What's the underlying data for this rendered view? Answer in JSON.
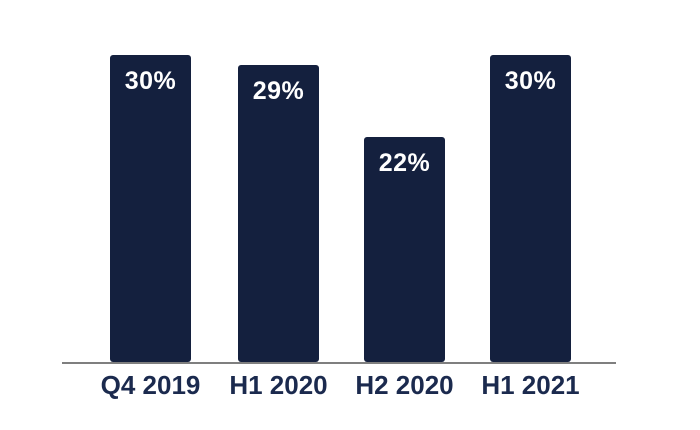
{
  "chart_data": {
    "type": "bar",
    "categories": [
      "Q4 2019",
      "H1 2020",
      "H2 2020",
      "H1 2021"
    ],
    "values": [
      30,
      29,
      22,
      30
    ],
    "data_labels": [
      "30%",
      "29%",
      "22%",
      "30%"
    ],
    "title": "",
    "xlabel": "",
    "ylabel": "",
    "ylim": [
      0,
      30
    ],
    "grid": false,
    "legend": false,
    "data_label_position": "inside-top",
    "colors": {
      "bar_fill": "#14203E",
      "data_label_text": "#FFFFFF",
      "tick_label_text": "#1B2A4E",
      "axis_line": "#7F7F7F",
      "background": "#FFFFFF"
    }
  }
}
